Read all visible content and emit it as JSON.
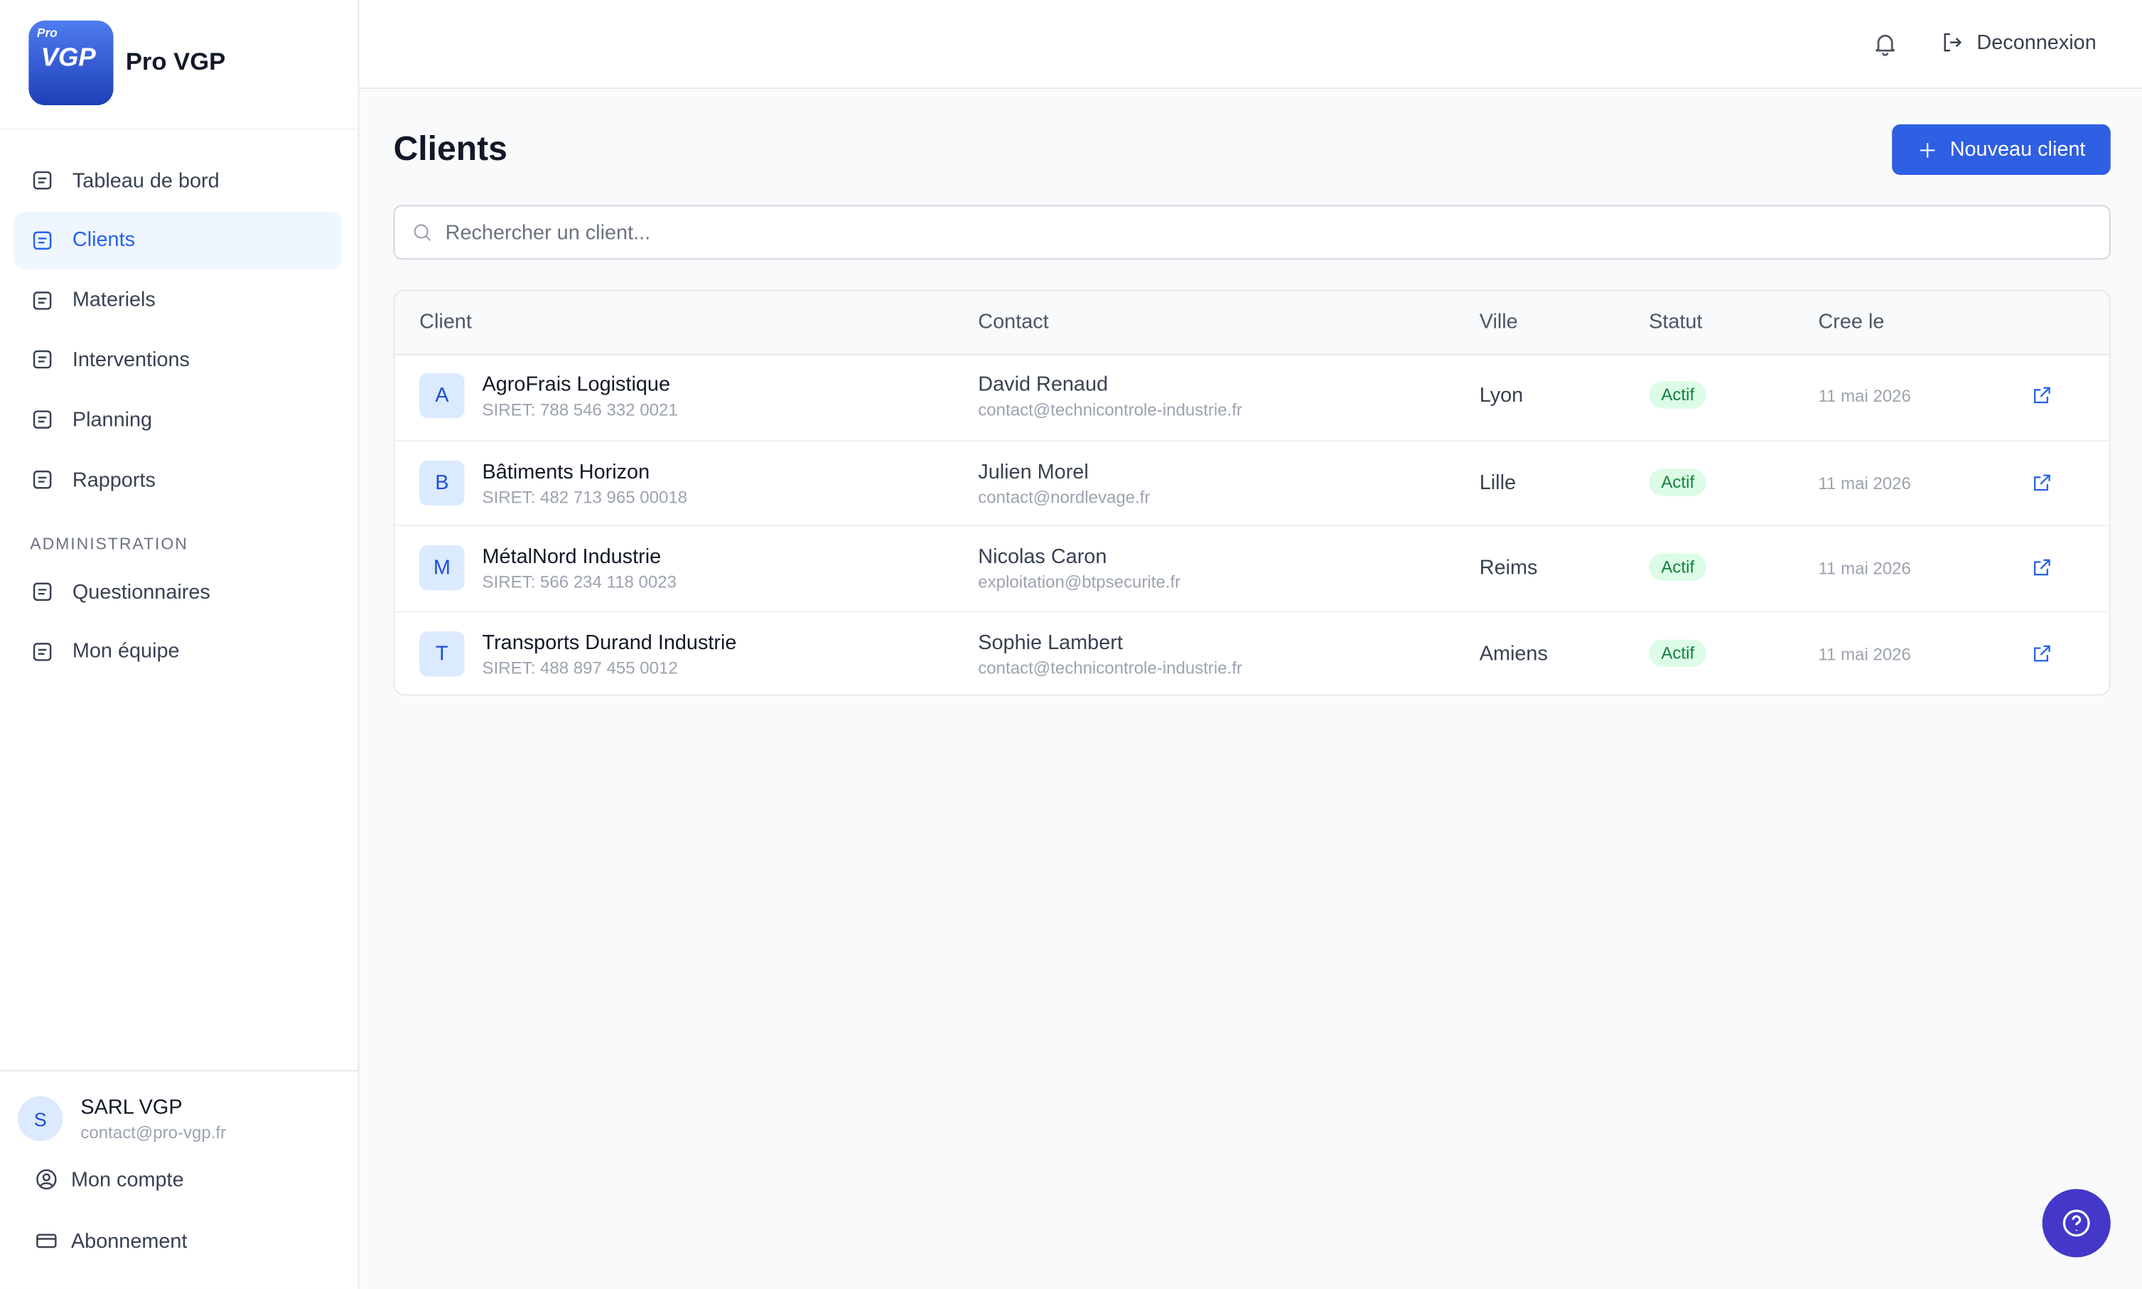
{
  "sidebar": {
    "logo": {
      "small": "Pro",
      "main": "VGP"
    },
    "brand": "Pro VGP",
    "nav": [
      "Tableau de bord",
      "Clients",
      "Materiels",
      "Interventions",
      "Planning",
      "Rapports"
    ],
    "section_label": "ADMINISTRATION",
    "admin_nav": [
      "Questionnaires",
      "Mon équipe"
    ],
    "account": {
      "initial": "S",
      "name": "SARL VGP",
      "email": "contact@pro-vgp.fr"
    },
    "account_links": [
      "Mon compte",
      "Abonnement"
    ]
  },
  "topbar": {
    "logout": "Deconnexion"
  },
  "page": {
    "title": "Clients",
    "new_button": "Nouveau client",
    "search_placeholder": "Rechercher un client..."
  },
  "table": {
    "headers": [
      "Client",
      "Contact",
      "Ville",
      "Statut",
      "Cree le"
    ],
    "rows": [
      {
        "initial": "A",
        "name": "AgroFrais Logistique",
        "siret": "SIRET: 788 546 332 0021",
        "contact_name": "David Renaud",
        "contact_email": "contact@technicontrole-industrie.fr",
        "city": "Lyon",
        "status": "Actif",
        "created": "11 mai 2026"
      },
      {
        "initial": "B",
        "name": "Bâtiments Horizon",
        "siret": "SIRET: 482 713 965 00018",
        "contact_name": "Julien Morel",
        "contact_email": "contact@nordlevage.fr",
        "city": "Lille",
        "status": "Actif",
        "created": "11 mai 2026"
      },
      {
        "initial": "M",
        "name": "MétalNord Industrie",
        "siret": "SIRET: 566 234 118 0023",
        "contact_name": "Nicolas Caron",
        "contact_email": "exploitation@btpsecurite.fr",
        "city": "Reims",
        "status": "Actif",
        "created": "11 mai 2026"
      },
      {
        "initial": "T",
        "name": "Transports Durand Industrie",
        "siret": "SIRET: 488 897 455 0012",
        "contact_name": "Sophie Lambert",
        "contact_email": "contact@technicontrole-industrie.fr",
        "city": "Amiens",
        "status": "Actif",
        "created": "11 mai 2026"
      }
    ]
  }
}
